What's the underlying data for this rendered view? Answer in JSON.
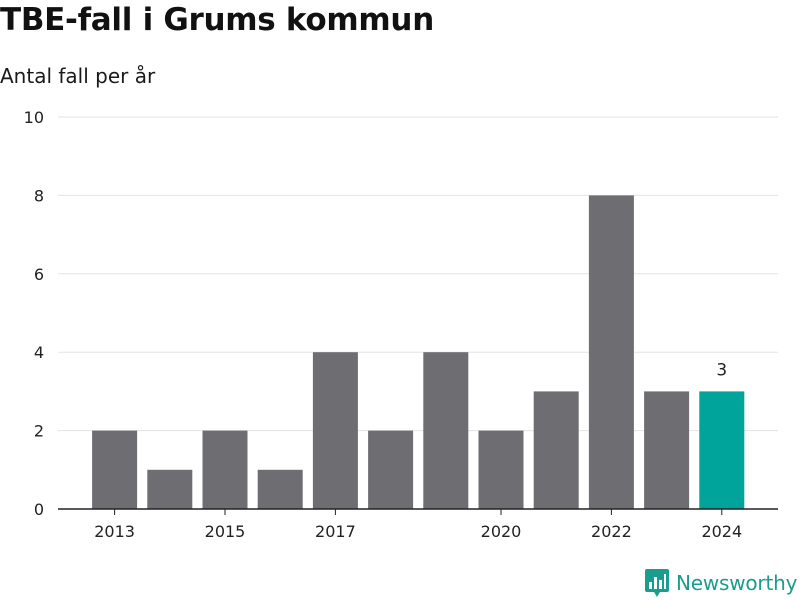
{
  "title": "TBE-fall i Grums kommun",
  "subtitle": "Antal fall per år",
  "brand": {
    "name": "Newsworthy",
    "icon": "chart-logo-icon",
    "color": "#1a9c8f"
  },
  "colors": {
    "bar": "#6e6d72",
    "highlight": "#00a49a",
    "grid": "#e3e3e3",
    "axis": "#222222"
  },
  "chart_data": {
    "type": "bar",
    "title": "TBE-fall i Grums kommun",
    "subtitle": "Antal fall per år",
    "xlabel": "",
    "ylabel": "",
    "categories": [
      "2013",
      "2014",
      "2015",
      "2016",
      "2017",
      "2018",
      "2019",
      "2020",
      "2021",
      "2022",
      "2023",
      "2024"
    ],
    "values": [
      2,
      1,
      2,
      1,
      4,
      2,
      4,
      2,
      3,
      8,
      3,
      3
    ],
    "x_tick_labels": [
      "2013",
      "2015",
      "2017",
      "2020",
      "2022",
      "2024"
    ],
    "y_ticks": [
      "0",
      "2",
      "4",
      "6",
      "8",
      "10"
    ],
    "ylim": [
      0,
      10
    ],
    "grid": true,
    "highlight": {
      "category": "2024",
      "label": "3"
    }
  }
}
